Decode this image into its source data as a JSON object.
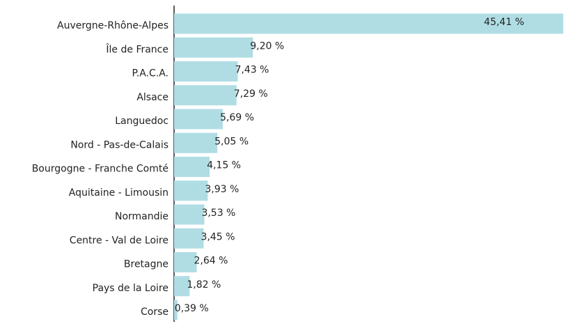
{
  "chart_data": {
    "type": "barh",
    "categories": [
      "Auvergne-Rhône-Alpes",
      "Île de France",
      "P.A.C.A.",
      "Alsace",
      "Languedoc",
      "Nord - Pas-de-Calais",
      "Bourgogne - Franche Comté",
      "Aquitaine - Limousin",
      "Normandie",
      "Centre - Val de Loire",
      "Bretagne",
      "Pays de la Loire",
      "Corse"
    ],
    "values": [
      45.41,
      9.2,
      7.43,
      7.29,
      5.69,
      5.05,
      4.15,
      3.93,
      3.53,
      3.45,
      2.64,
      1.82,
      0.39
    ],
    "value_labels": [
      "45,41 %",
      "9,20 %",
      "7,43 %",
      "7,29 %",
      "5,69 %",
      "5,05 %",
      "4,15 %",
      "3,93 %",
      "3,53 %",
      "3,45 %",
      "2,64 %",
      "1,82 %",
      "0,39 %"
    ],
    "color": "#b0dde4",
    "xlim": [
      0,
      45.5
    ]
  }
}
